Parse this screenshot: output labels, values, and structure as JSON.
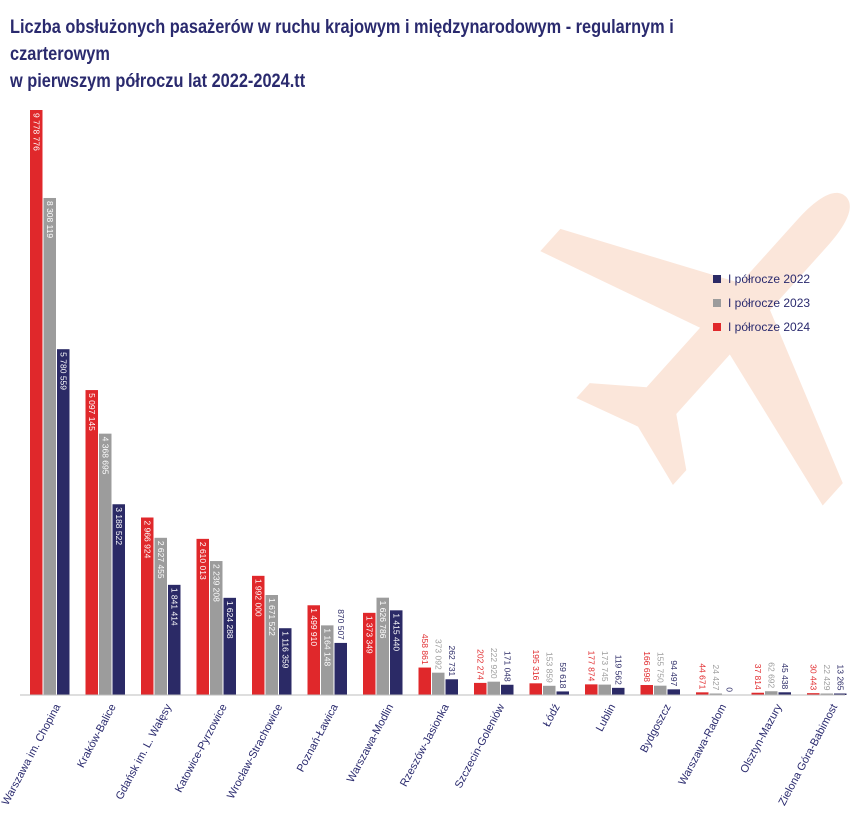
{
  "title": {
    "line1": "Liczba obsłużonych pasażerów w ruchu krajowym i międzynarodowym - regularnym i czarterowym",
    "line2": "w pierwszym półroczu lat 2022-2024.tt"
  },
  "colors": {
    "title": "#2a2a6e",
    "series_2022": "#2b2a66",
    "series_2023": "#9c9c9c",
    "series_2024": "#e0282b",
    "plane": "#fbe6da"
  },
  "decoration": {
    "icon": "airplane-icon"
  },
  "chart_data": {
    "type": "bar",
    "title": "Liczba obsłużonych pasażerów w ruchu krajowym i międzynarodowym - regularnym i czarterowym w pierwszym półroczu lat 2022-2024.tt",
    "xlabel": "",
    "ylabel": "",
    "ylim": [
      0,
      9800000
    ],
    "legend_position": "right",
    "grid": false,
    "categories": [
      "Warszawa im. Chopina",
      "Kraków-Balice",
      "Gdańsk im. L. Wałęsy",
      "Katowice-Pyrzowice",
      "Wrocław-Strachowice",
      "Poznań-Ławica",
      "Warszawa-Modlin",
      "Rzeszów-Jasionka",
      "Szczecin-Goleniów",
      "Łódź",
      "Lublin",
      "Bydgoszcz",
      "Warszawa-Radom",
      "Olsztyn-Mazury",
      "Zielona Góra-Babimost"
    ],
    "series": [
      {
        "name": "I półrocze 2024",
        "values": [
          9778776,
          5097145,
          2966924,
          2610013,
          1992000,
          1499910,
          1373349,
          458861,
          202274,
          195316,
          177874,
          166698,
          44671,
          37814,
          30443
        ],
        "labels": [
          "9 778 776",
          "5 097 145",
          "2 966 924",
          "2 610 013",
          "1 992 000",
          "1 499 910",
          "1 373 349",
          "458 861",
          "202 274",
          "195 316",
          "177 874",
          "166 698",
          "44 671",
          "37 814",
          "30 443"
        ]
      },
      {
        "name": "I półrocze 2023",
        "values": [
          8308119,
          4368695,
          2627455,
          2239208,
          1671522,
          1164148,
          1626786,
          373092,
          222920,
          153859,
          173745,
          155750,
          24427,
          62692,
          22429
        ],
        "labels": [
          "8 308 119",
          "4 368 695",
          "2 627 455",
          "2 239 208",
          "1 671 522",
          "1 164 148",
          "1 626 786",
          "373 092",
          "222 920",
          "153 859",
          "173 745",
          "155 750",
          "24 427",
          "62 692",
          "22 429"
        ]
      },
      {
        "name": "I półrocze 2022",
        "values": [
          5780559,
          3188522,
          1841414,
          1624288,
          1116359,
          870507,
          1415440,
          262731,
          171048,
          59618,
          119562,
          94497,
          0,
          45438,
          13265
        ],
        "labels": [
          "5 780 559",
          "3 188 522",
          "1 841 414",
          "1 624 288",
          "1 116 359",
          "870 507",
          "1 415 440",
          "262 731",
          "171 048",
          "59 618",
          "119 562",
          "94 497",
          "0",
          "45 438",
          "13 265"
        ]
      }
    ],
    "legend": [
      "I półrocze 2022",
      "I półrocze 2023",
      "I półrocze 2024"
    ]
  }
}
